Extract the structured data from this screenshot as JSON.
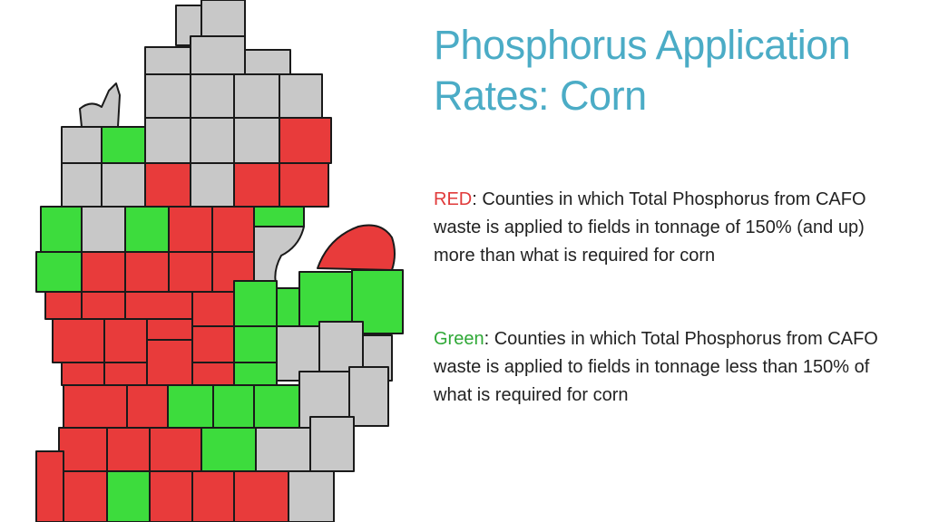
{
  "slide": {
    "title_line1": "Phosphorus Application",
    "title_line2": "Rates: Corn",
    "legend": {
      "red": {
        "keyword": "RED",
        "text": ": Counties in which Total Phosphorus from CAFO waste is applied to fields in tonnage of 150% (and up) more than what is required for corn",
        "color": "#e83b3b"
      },
      "green": {
        "keyword": "Green",
        "text": ": Counties in which Total Phosphorus from CAFO waste is applied to fields in tonnage less than 150% of what is required for corn",
        "color": "#3ddc3d"
      },
      "none": {
        "color": "#c8c8c8"
      }
    }
  }
}
